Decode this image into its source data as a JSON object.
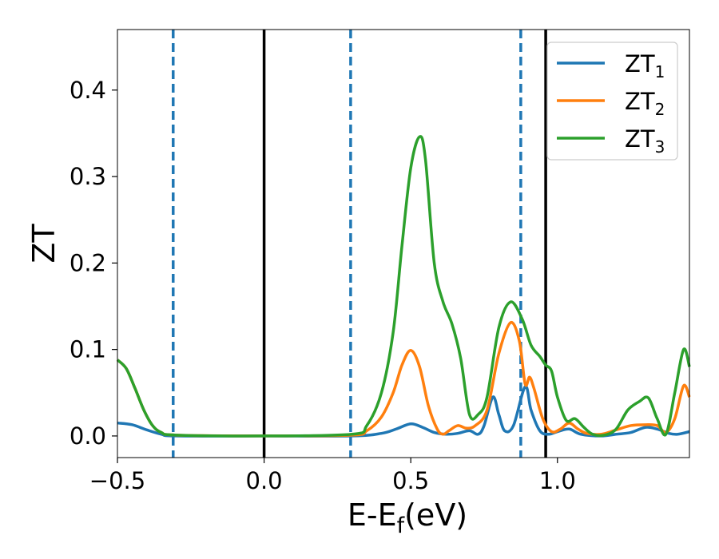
{
  "chart_data": {
    "type": "line",
    "xlabel": "E-E",
    "xlabel_sub": "f",
    "xlabel_unit": "(eV)",
    "ylabel": "ZT",
    "xlim": [
      -0.5,
      1.45
    ],
    "ylim": [
      -0.025,
      0.47
    ],
    "xticks": [
      -0.5,
      0.0,
      0.5,
      1.0
    ],
    "xtick_labels": [
      "−0.5",
      "0.0",
      "0.5",
      "1.0"
    ],
    "yticks": [
      0.0,
      0.1,
      0.2,
      0.3,
      0.4
    ],
    "ytick_labels": [
      "0.0",
      "0.1",
      "0.2",
      "0.3",
      "0.4"
    ],
    "grid": false,
    "legend_position": "top-right",
    "vertical_lines": [
      {
        "x": -0.31,
        "style": "dashed",
        "color": "#1f77b4"
      },
      {
        "x": 0.0,
        "style": "solid",
        "color": "#000000"
      },
      {
        "x": 0.295,
        "style": "dashed",
        "color": "#1f77b4"
      },
      {
        "x": 0.875,
        "style": "dashed",
        "color": "#1f77b4"
      },
      {
        "x": 0.96,
        "style": "solid",
        "color": "#000000"
      }
    ],
    "series": [
      {
        "name": "ZT",
        "name_sub": "1",
        "color": "#1f77b4",
        "points": [
          [
            -0.5,
            0.015
          ],
          [
            -0.45,
            0.013
          ],
          [
            -0.4,
            0.007
          ],
          [
            -0.35,
            0.002
          ],
          [
            -0.3,
            0.0
          ],
          [
            0.0,
            0.0
          ],
          [
            0.3,
            0.0
          ],
          [
            0.4,
            0.003
          ],
          [
            0.45,
            0.008
          ],
          [
            0.5,
            0.014
          ],
          [
            0.54,
            0.01
          ],
          [
            0.58,
            0.004
          ],
          [
            0.62,
            0.002
          ],
          [
            0.66,
            0.003
          ],
          [
            0.7,
            0.006
          ],
          [
            0.73,
            0.002
          ],
          [
            0.75,
            0.012
          ],
          [
            0.78,
            0.045
          ],
          [
            0.8,
            0.025
          ],
          [
            0.82,
            0.006
          ],
          [
            0.85,
            0.012
          ],
          [
            0.89,
            0.057
          ],
          [
            0.91,
            0.03
          ],
          [
            0.94,
            0.006
          ],
          [
            0.97,
            0.002
          ],
          [
            1.0,
            0.005
          ],
          [
            1.04,
            0.008
          ],
          [
            1.08,
            0.002
          ],
          [
            1.15,
            0.0
          ],
          [
            1.2,
            0.002
          ],
          [
            1.25,
            0.004
          ],
          [
            1.3,
            0.01
          ],
          [
            1.34,
            0.008
          ],
          [
            1.38,
            0.003
          ],
          [
            1.41,
            0.002
          ],
          [
            1.45,
            0.005
          ]
        ]
      },
      {
        "name": "ZT",
        "name_sub": "2",
        "color": "#ff7f0e",
        "points": [
          [
            -0.5,
            0.088
          ],
          [
            -0.47,
            0.078
          ],
          [
            -0.44,
            0.055
          ],
          [
            -0.41,
            0.03
          ],
          [
            -0.38,
            0.012
          ],
          [
            -0.35,
            0.004
          ],
          [
            -0.3,
            0.001
          ],
          [
            0.0,
            0.0
          ],
          [
            0.3,
            0.001
          ],
          [
            0.35,
            0.006
          ],
          [
            0.4,
            0.022
          ],
          [
            0.44,
            0.05
          ],
          [
            0.47,
            0.082
          ],
          [
            0.5,
            0.099
          ],
          [
            0.53,
            0.08
          ],
          [
            0.56,
            0.035
          ],
          [
            0.59,
            0.008
          ],
          [
            0.61,
            0.002
          ],
          [
            0.63,
            0.006
          ],
          [
            0.66,
            0.012
          ],
          [
            0.69,
            0.009
          ],
          [
            0.72,
            0.012
          ],
          [
            0.76,
            0.03
          ],
          [
            0.8,
            0.095
          ],
          [
            0.84,
            0.131
          ],
          [
            0.87,
            0.11
          ],
          [
            0.89,
            0.06
          ],
          [
            0.905,
            0.068
          ],
          [
            0.92,
            0.055
          ],
          [
            0.95,
            0.02
          ],
          [
            0.98,
            0.005
          ],
          [
            1.01,
            0.008
          ],
          [
            1.04,
            0.015
          ],
          [
            1.07,
            0.008
          ],
          [
            1.1,
            0.003
          ],
          [
            1.15,
            0.002
          ],
          [
            1.2,
            0.007
          ],
          [
            1.25,
            0.012
          ],
          [
            1.3,
            0.013
          ],
          [
            1.34,
            0.012
          ],
          [
            1.37,
            0.004
          ],
          [
            1.4,
            0.02
          ],
          [
            1.43,
            0.058
          ],
          [
            1.45,
            0.045
          ]
        ]
      },
      {
        "name": "ZT",
        "name_sub": "3",
        "color": "#2ca02c",
        "points": [
          [
            -0.5,
            0.088
          ],
          [
            -0.47,
            0.078
          ],
          [
            -0.44,
            0.055
          ],
          [
            -0.41,
            0.03
          ],
          [
            -0.38,
            0.012
          ],
          [
            -0.35,
            0.004
          ],
          [
            -0.3,
            0.001
          ],
          [
            0.0,
            0.0
          ],
          [
            0.3,
            0.002
          ],
          [
            0.35,
            0.012
          ],
          [
            0.4,
            0.05
          ],
          [
            0.44,
            0.12
          ],
          [
            0.47,
            0.22
          ],
          [
            0.5,
            0.31
          ],
          [
            0.53,
            0.346
          ],
          [
            0.55,
            0.32
          ],
          [
            0.58,
            0.2
          ],
          [
            0.61,
            0.155
          ],
          [
            0.64,
            0.13
          ],
          [
            0.67,
            0.09
          ],
          [
            0.7,
            0.025
          ],
          [
            0.73,
            0.025
          ],
          [
            0.76,
            0.045
          ],
          [
            0.8,
            0.125
          ],
          [
            0.84,
            0.155
          ],
          [
            0.88,
            0.135
          ],
          [
            0.91,
            0.105
          ],
          [
            0.94,
            0.092
          ],
          [
            0.96,
            0.082
          ],
          [
            0.98,
            0.075
          ],
          [
            1.0,
            0.045
          ],
          [
            1.03,
            0.018
          ],
          [
            1.06,
            0.02
          ],
          [
            1.09,
            0.01
          ],
          [
            1.12,
            0.002
          ],
          [
            1.16,
            0.001
          ],
          [
            1.2,
            0.008
          ],
          [
            1.24,
            0.03
          ],
          [
            1.28,
            0.04
          ],
          [
            1.31,
            0.044
          ],
          [
            1.34,
            0.02
          ],
          [
            1.37,
            0.002
          ],
          [
            1.4,
            0.05
          ],
          [
            1.43,
            0.1
          ],
          [
            1.45,
            0.08
          ]
        ]
      }
    ]
  }
}
